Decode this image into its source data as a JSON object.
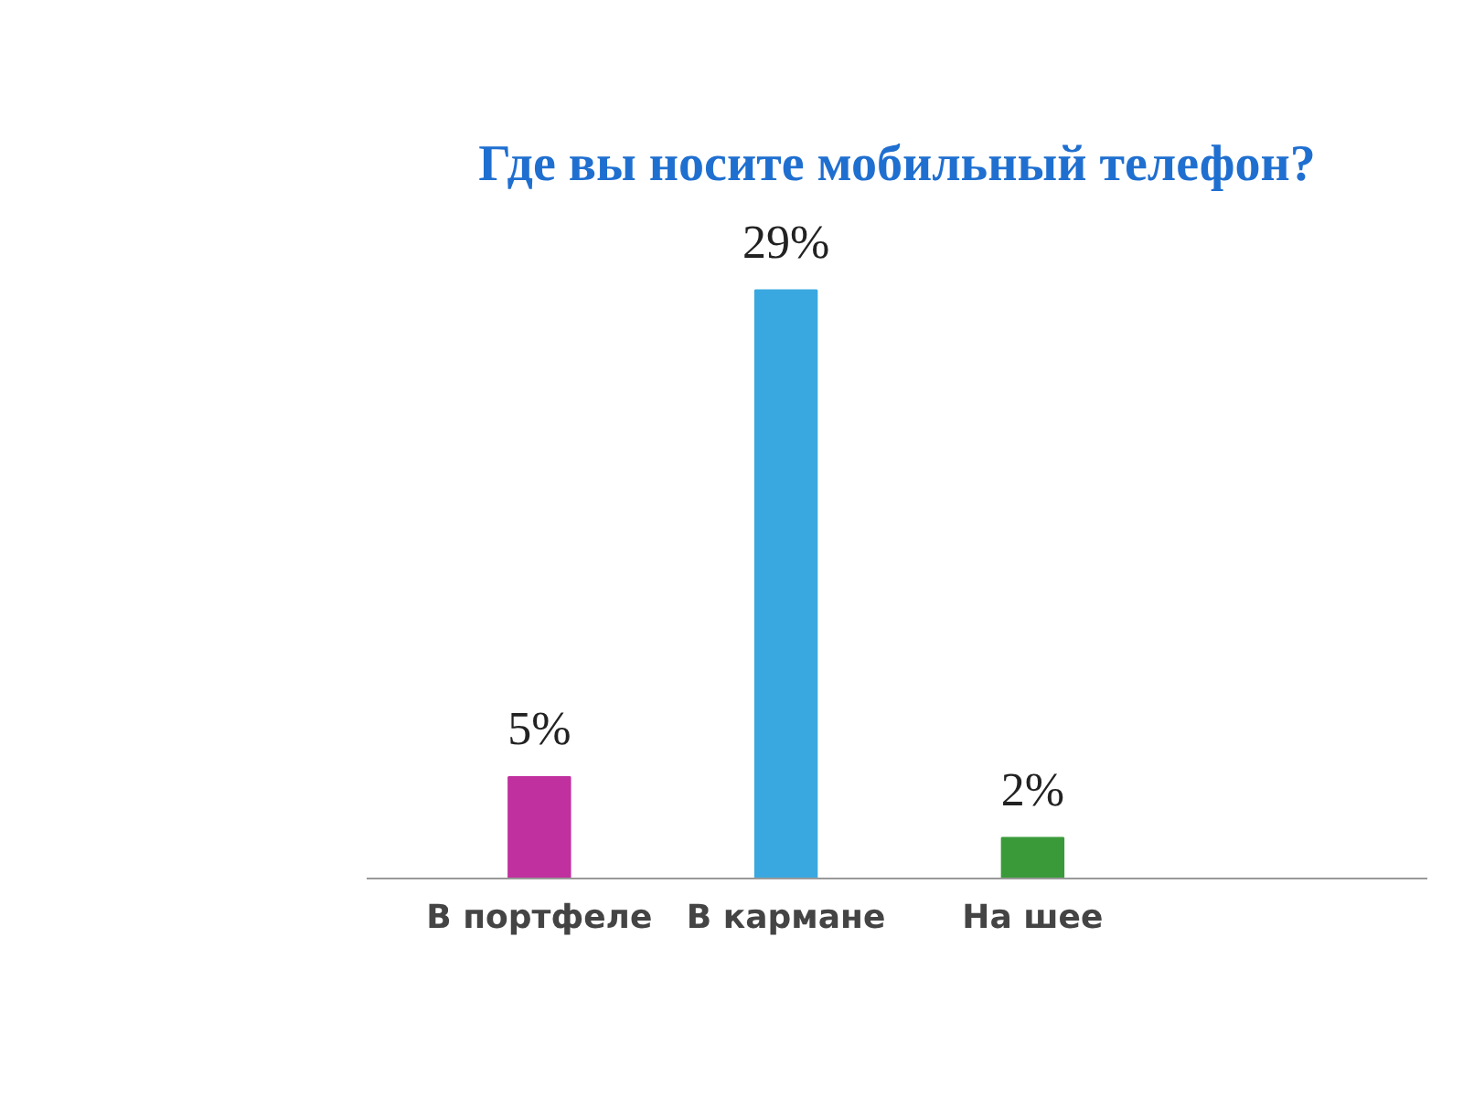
{
  "chart_data": {
    "type": "bar",
    "title": "Где вы носите мобильный телефон?",
    "categories": [
      "В портфеле",
      "В кармане",
      "На шее"
    ],
    "values": [
      5,
      29,
      2
    ],
    "colors": [
      "#c0309e",
      "#3aa8e0",
      "#3a9a3a"
    ],
    "value_labels": [
      "5%",
      "29%",
      "2%"
    ],
    "grid": false
  }
}
